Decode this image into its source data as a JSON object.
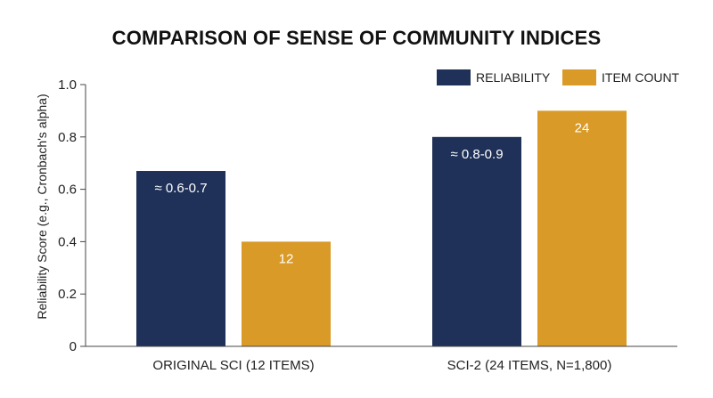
{
  "chart_data": {
    "type": "bar",
    "title": "COMPARISON OF SENSE OF COMMUNITY INDICES",
    "xlabel": "",
    "ylabel": "Reliability Score (e.g., Cronbach's alpha)",
    "ylim": [
      0,
      1.0
    ],
    "yticks": [
      "0",
      "0.2",
      "0.4",
      "0.6",
      "0.8",
      "1.0"
    ],
    "ytick_values": [
      0,
      0.2,
      0.4,
      0.6,
      0.8,
      1.0
    ],
    "categories": [
      "ORIGINAL SCI (12 ITEMS)",
      "SCI-2 (24 ITEMS, N=1,800)"
    ],
    "series": [
      {
        "name": "RELIABILITY",
        "color": "#1f3158",
        "values": [
          0.67,
          0.8
        ],
        "labels": [
          "≈ 0.6-0.7",
          "≈ 0.8-0.9"
        ]
      },
      {
        "name": "ITEM COUNT",
        "color": "#d99a27",
        "values": [
          0.4,
          0.9
        ],
        "labels": [
          "12",
          "24"
        ]
      }
    ],
    "legend": "top-right",
    "grid": false
  }
}
